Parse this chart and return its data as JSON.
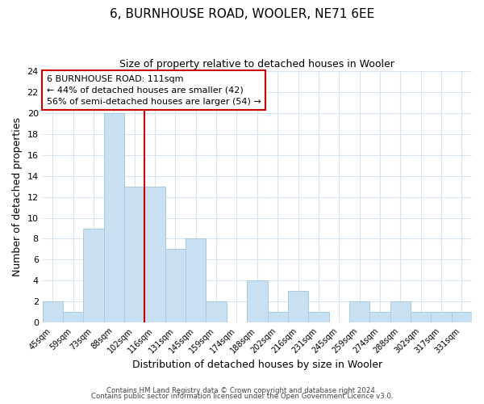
{
  "title": "6, BURNHOUSE ROAD, WOOLER, NE71 6EE",
  "subtitle": "Size of property relative to detached houses in Wooler",
  "xlabel": "Distribution of detached houses by size in Wooler",
  "ylabel": "Number of detached properties",
  "categories": [
    "45sqm",
    "59sqm",
    "73sqm",
    "88sqm",
    "102sqm",
    "116sqm",
    "131sqm",
    "145sqm",
    "159sqm",
    "174sqm",
    "188sqm",
    "202sqm",
    "216sqm",
    "231sqm",
    "245sqm",
    "259sqm",
    "274sqm",
    "288sqm",
    "302sqm",
    "317sqm",
    "331sqm"
  ],
  "values": [
    2,
    1,
    9,
    20,
    13,
    13,
    7,
    8,
    2,
    0,
    4,
    1,
    3,
    1,
    0,
    2,
    1,
    2,
    1,
    1,
    1
  ],
  "bar_color": "#c9dff2",
  "bar_edge_color": "#a8cce0",
  "vline_x_index": 4.5,
  "vline_color": "#cc0000",
  "ylim": [
    0,
    24
  ],
  "yticks": [
    0,
    2,
    4,
    6,
    8,
    10,
    12,
    14,
    16,
    18,
    20,
    22,
    24
  ],
  "annotation_title": "6 BURNHOUSE ROAD: 111sqm",
  "annotation_line1": "← 44% of detached houses are smaller (42)",
  "annotation_line2": "56% of semi-detached houses are larger (54) →",
  "footer1": "Contains HM Land Registry data © Crown copyright and database right 2024.",
  "footer2": "Contains public sector information licensed under the Open Government Licence v3.0.",
  "background_color": "#ffffff",
  "grid_color": "#d8e4f0"
}
